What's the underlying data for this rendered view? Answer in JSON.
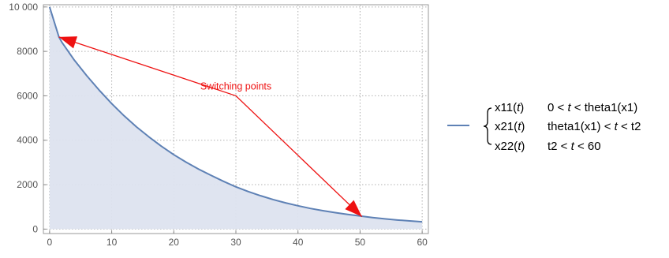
{
  "chart_data": {
    "type": "area",
    "title": "",
    "xlabel": "",
    "ylabel": "",
    "xlim": [
      -1,
      61
    ],
    "ylim": [
      -200,
      10100
    ],
    "x_ticks": [
      0,
      10,
      20,
      30,
      40,
      50,
      60
    ],
    "y_ticks": [
      0,
      2000,
      4000,
      6000,
      8000,
      10000
    ],
    "x_tick_labels": [
      "0",
      "10",
      "20",
      "30",
      "40",
      "50",
      "60"
    ],
    "y_tick_labels": [
      "0",
      "2000",
      "4000",
      "6000",
      "8000",
      "10 000"
    ],
    "grid": true,
    "series_color": "#5e81b5",
    "fill_color": "#dde3ef",
    "annotation_color": "#ee1111",
    "series": [
      {
        "x": [
          0,
          1.5,
          2,
          4,
          6,
          8,
          10,
          12,
          14,
          16,
          18,
          20,
          22,
          24,
          26,
          28,
          30,
          32,
          34,
          36,
          38,
          40,
          42,
          44,
          46,
          48,
          50,
          52,
          54,
          56,
          58,
          60
        ],
        "y": [
          10000,
          8650,
          8400,
          7600,
          6900,
          6250,
          5650,
          5100,
          4600,
          4150,
          3730,
          3350,
          3010,
          2700,
          2420,
          2150,
          1900,
          1690,
          1500,
          1330,
          1180,
          1050,
          930,
          830,
          740,
          660,
          590,
          520,
          460,
          410,
          370,
          330
        ]
      }
    ],
    "annotation": {
      "text": "Switching  points",
      "anchor": [
        30,
        6000
      ],
      "arrow_tips": [
        [
          1.5,
          8650
        ],
        [
          50.3,
          560
        ]
      ]
    },
    "legend": {
      "placement": "right",
      "rows": [
        {
          "name": "x11",
          "condition_parts": [
            "0 < ",
            "t",
            " < theta1(x1)"
          ]
        },
        {
          "name": "x21",
          "condition_parts": [
            "theta1(x1) < ",
            "t",
            " < t2"
          ]
        },
        {
          "name": "x22",
          "condition_parts": [
            "t2 < ",
            "t",
            " < 60"
          ]
        }
      ],
      "var": "t"
    }
  }
}
